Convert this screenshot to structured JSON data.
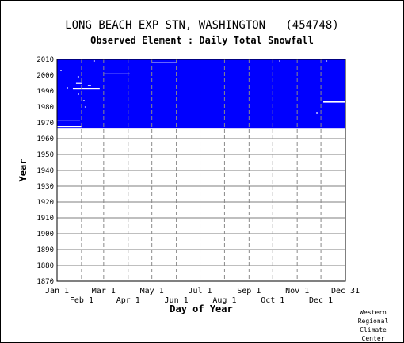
{
  "header": {
    "title": "LONG BEACH EXP STN, WASHINGTON   (454748)",
    "subtitle": "Observed Element : Daily Total Snowfall"
  },
  "credit": [
    "Western",
    "Regional",
    "Climate",
    "Center"
  ],
  "chart_data": {
    "type": "heatmap",
    "title": "LONG BEACH EXP STN, WASHINGTON   (454748)",
    "subtitle": "Observed Element : Daily Total Snowfall",
    "xlabel": "Day of Year",
    "ylabel": "Year",
    "xlim": [
      1,
      366
    ],
    "ylim": [
      1870,
      2010
    ],
    "x_ticks_top_row": [
      {
        "label": "Jan 1",
        "day": 1
      },
      {
        "label": "Mar 1",
        "day": 60
      },
      {
        "label": "May 1",
        "day": 121
      },
      {
        "label": "Jul 1",
        "day": 182
      },
      {
        "label": "Sep 1",
        "day": 244
      },
      {
        "label": "Nov 1",
        "day": 305
      },
      {
        "label": "Dec 31",
        "day": 366
      }
    ],
    "x_ticks_bottom_row": [
      {
        "label": "Feb 1",
        "day": 32
      },
      {
        "label": "Apr 1",
        "day": 91
      },
      {
        "label": "Jun 1",
        "day": 152
      },
      {
        "label": "Aug 1",
        "day": 213
      },
      {
        "label": "Oct 1",
        "day": 274
      },
      {
        "label": "Dec 1",
        "day": 335
      }
    ],
    "y_ticks": [
      1870,
      1880,
      1890,
      1900,
      1910,
      1920,
      1930,
      1940,
      1950,
      1960,
      1970,
      1980,
      1990,
      2000,
      2010
    ],
    "grid": true,
    "fill_color": "#0000ff",
    "coverage": [
      {
        "year_start": 1967.0,
        "year_end": 2010.0,
        "day_start": 1,
        "day_end": 366
      },
      {
        "year_start": 1966.4,
        "year_end": 1967.0,
        "day_start": 1,
        "day_end": 366
      }
    ],
    "missing_gaps": [
      {
        "year_start": 1967.4,
        "year_end": 1968.0,
        "day_start": 1,
        "day_end": 32
      },
      {
        "year_start": 1971.4,
        "year_end": 1972.0,
        "day_start": 1,
        "day_end": 30
      },
      {
        "year_start": 1966.4,
        "year_end": 1967.0,
        "day_start": 1,
        "day_end": 213
      },
      {
        "year_start": 2000.5,
        "year_end": 2001.1,
        "day_start": 60,
        "day_end": 93
      },
      {
        "year_start": 2007.6,
        "year_end": 2008.2,
        "day_start": 121,
        "day_end": 152
      },
      {
        "year_start": 1982.7,
        "year_end": 1983.6,
        "day_start": 338,
        "day_end": 366
      },
      {
        "year_start": 1991.4,
        "year_end": 1992.0,
        "day_start": 21,
        "day_end": 55
      },
      {
        "year_start": 1994.6,
        "year_end": 1995.2,
        "day_start": 25,
        "day_end": 33
      },
      {
        "year_start": 1993.4,
        "year_end": 1993.9,
        "day_start": 40,
        "day_end": 44
      },
      {
        "year_start": 1998.8,
        "year_end": 1999.3,
        "day_start": 27,
        "day_end": 29
      },
      {
        "year_start": 2002.8,
        "year_end": 2003.3,
        "day_start": 5,
        "day_end": 7
      },
      {
        "year_start": 1983.8,
        "year_end": 1984.3,
        "day_start": 34,
        "day_end": 36
      },
      {
        "year_start": 1975.8,
        "year_end": 1976.3,
        "day_start": 329,
        "day_end": 331
      },
      {
        "year_start": 2008.8,
        "year_end": 2009.3,
        "day_start": 342,
        "day_end": 343
      },
      {
        "year_start": 2008.8,
        "year_end": 2009.3,
        "day_start": 282,
        "day_end": 283
      },
      {
        "year_start": 2008.8,
        "year_end": 2009.3,
        "day_start": 48,
        "day_end": 49
      },
      {
        "year_start": 1991.8,
        "year_end": 1992.3,
        "day_start": 14,
        "day_end": 15
      },
      {
        "year_start": 1979.8,
        "year_end": 1980.3,
        "day_start": 36,
        "day_end": 37
      },
      {
        "year_start": 1987.8,
        "year_end": 1988.3,
        "day_start": 28,
        "day_end": 29
      }
    ]
  }
}
